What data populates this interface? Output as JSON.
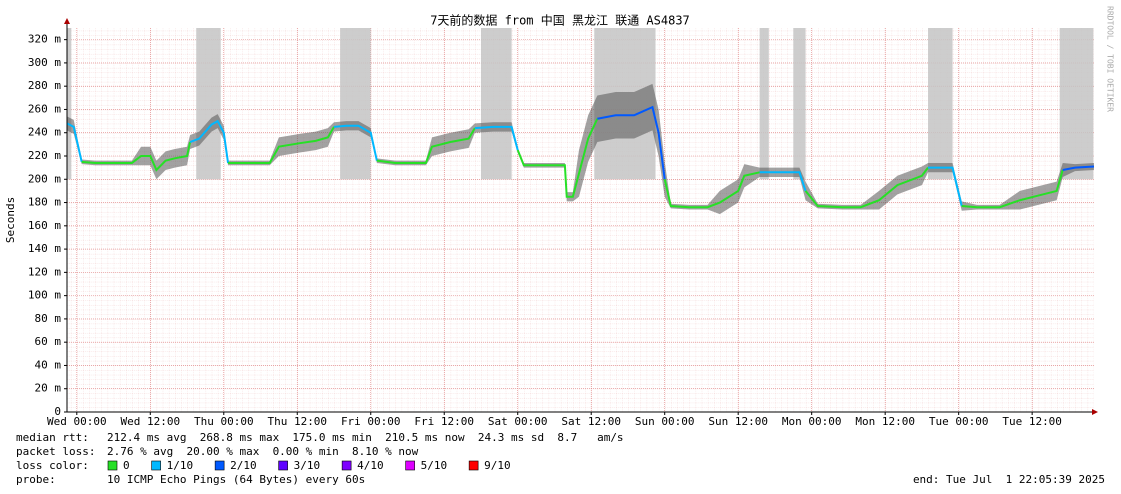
{
  "chart_data": {
    "type": "smokeping",
    "title": "7天前的数据 from 中国 黑龙江 联通 AS4837",
    "y_label": "Seconds",
    "watermark": "RRDTOOL / TOBI OETIKER",
    "xlim": [
      -1.6,
      166.1
    ],
    "xticks": [
      {
        "value": 0,
        "label": "Wed 00:00"
      },
      {
        "value": 12,
        "label": "Wed 12:00"
      },
      {
        "value": 24,
        "label": "Thu 00:00"
      },
      {
        "value": 36,
        "label": "Thu 12:00"
      },
      {
        "value": 48,
        "label": "Fri 00:00"
      },
      {
        "value": 60,
        "label": "Fri 12:00"
      },
      {
        "value": 72,
        "label": "Sat 00:00"
      },
      {
        "value": 84,
        "label": "Sat 12:00"
      },
      {
        "value": 96,
        "label": "Sun 00:00"
      },
      {
        "value": 108,
        "label": "Sun 12:00"
      },
      {
        "value": 120,
        "label": "Mon 00:00"
      },
      {
        "value": 132,
        "label": "Mon 12:00"
      },
      {
        "value": 144,
        "label": "Tue 00:00"
      },
      {
        "value": 156,
        "label": "Tue 12:00"
      }
    ],
    "ylim": [
      0,
      330
    ],
    "yticks": [
      0,
      {
        "value": 20,
        "label": "20 m"
      },
      {
        "value": 40,
        "label": "40 m"
      },
      {
        "value": 60,
        "label": "60 m"
      },
      {
        "value": 80,
        "label": "80 m"
      },
      {
        "value": 100,
        "label": "100 m"
      },
      {
        "value": 120,
        "label": "120 m"
      },
      {
        "value": 140,
        "label": "140 m"
      },
      {
        "value": 160,
        "label": "160 m"
      },
      {
        "value": 180,
        "label": "180 m"
      },
      {
        "value": 200,
        "label": "200 m"
      },
      {
        "value": 220,
        "label": "220 m"
      },
      {
        "value": 240,
        "label": "240 m"
      },
      {
        "value": 260,
        "label": "260 m"
      },
      {
        "value": 280,
        "label": "280 m"
      },
      {
        "value": 300,
        "label": "300 m"
      },
      {
        "value": 320,
        "label": "320 m"
      }
    ],
    "grid": true,
    "x": [
      -1.6,
      -0.5,
      0.8,
      3,
      6,
      9,
      10.5,
      12,
      13,
      14.5,
      16,
      18,
      18.5,
      20,
      22,
      23,
      24,
      24.7,
      28,
      31.5,
      33,
      36.4,
      39,
      41,
      42,
      44,
      46,
      48,
      49,
      52,
      57,
      58,
      61,
      64,
      65,
      68,
      71,
      72,
      73,
      76,
      79.7,
      80,
      81,
      82,
      83.5,
      85,
      88,
      91,
      94,
      95,
      96,
      97,
      100,
      103,
      105,
      108,
      109,
      111.5,
      115,
      118,
      119,
      121,
      125,
      128,
      131,
      134,
      138,
      139,
      141,
      143,
      144.5,
      147,
      150.7,
      154,
      157,
      160,
      161,
      163,
      166.1
    ],
    "values": [
      248,
      245,
      215,
      214,
      214,
      214,
      220,
      220,
      208,
      216,
      218,
      220,
      232,
      235,
      247,
      250,
      240,
      214,
      214,
      214,
      228,
      231,
      233,
      236,
      245,
      246,
      246,
      240,
      216,
      214,
      214,
      228,
      232,
      235,
      244,
      245,
      245,
      225,
      212,
      212,
      212,
      185,
      185,
      205,
      235,
      252,
      255,
      255,
      262,
      240,
      200,
      177,
      176,
      176,
      180,
      190,
      203,
      206,
      206,
      206,
      190,
      177,
      176,
      176,
      182,
      195,
      203,
      210,
      210,
      210,
      177,
      176,
      176,
      182,
      186,
      190,
      208,
      210,
      211
    ],
    "smoke_low": [
      242,
      239,
      213,
      212,
      212,
      212,
      212,
      212,
      200,
      208,
      210,
      212,
      226,
      229,
      241,
      244,
      234,
      212,
      212,
      212,
      220,
      223,
      225,
      228,
      241,
      242,
      242,
      236,
      214,
      212,
      212,
      220,
      224,
      227,
      240,
      241,
      241,
      223,
      210,
      210,
      210,
      181,
      181,
      185,
      215,
      232,
      235,
      235,
      242,
      220,
      185,
      175,
      174,
      174,
      170,
      180,
      193,
      202,
      202,
      202,
      182,
      175,
      174,
      174,
      174,
      187,
      195,
      206,
      206,
      206,
      173,
      174,
      174,
      174,
      178,
      182,
      202,
      207,
      208
    ],
    "smoke_high": [
      254,
      251,
      217,
      216,
      216,
      216,
      228,
      228,
      216,
      224,
      226,
      228,
      238,
      241,
      253,
      256,
      246,
      216,
      216,
      216,
      236,
      239,
      241,
      244,
      249,
      250,
      250,
      244,
      218,
      216,
      216,
      236,
      240,
      243,
      248,
      249,
      249,
      227,
      214,
      214,
      214,
      189,
      189,
      225,
      255,
      272,
      275,
      275,
      282,
      260,
      215,
      179,
      178,
      178,
      190,
      200,
      213,
      210,
      210,
      210,
      198,
      179,
      178,
      178,
      190,
      203,
      211,
      214,
      214,
      214,
      181,
      178,
      178,
      190,
      194,
      198,
      214,
      213,
      214
    ],
    "loss": [
      1,
      1,
      0,
      0,
      0,
      0,
      0,
      0,
      0,
      0,
      0,
      0,
      1,
      1,
      1,
      1,
      1,
      0,
      0,
      0,
      0,
      0,
      0,
      0,
      1,
      1,
      1,
      1,
      0,
      0,
      0,
      0,
      0,
      0,
      1,
      1,
      1,
      0,
      0,
      0,
      0,
      0,
      0,
      0,
      0,
      2,
      2,
      2,
      2,
      2,
      0,
      0,
      0,
      0,
      0,
      0,
      0,
      1,
      1,
      1,
      0,
      0,
      0,
      0,
      0,
      0,
      0,
      1,
      1,
      1,
      0,
      0,
      0,
      0,
      0,
      0,
      2,
      2,
      2
    ],
    "loss_spikes": [
      [
        -1.6,
        -0.9
      ],
      [
        19.5,
        23.5
      ],
      [
        43,
        48
      ],
      [
        66,
        71
      ],
      [
        84.5,
        94.5
      ],
      [
        111.5,
        113
      ],
      [
        117,
        119
      ],
      [
        139,
        143
      ],
      [
        160.5,
        166
      ]
    ],
    "stats": [
      {
        "label": "median rtt:",
        "text": "212.4 ms avg  268.8 ms max  175.0 ms min  210.5 ms now  24.3 ms sd  8.7   am/s"
      },
      {
        "label": "packet loss:",
        "text": "2.76 % avg  20.00 % max  0.00 % min  8.10 % now"
      }
    ],
    "loss_color_label": "loss color:",
    "loss_colors": [
      {
        "label": "0",
        "color": "#26e026"
      },
      {
        "label": "1/10",
        "color": "#00b8ff"
      },
      {
        "label": "2/10",
        "color": "#0059ff"
      },
      {
        "label": "3/10",
        "color": "#5e00ff"
      },
      {
        "label": "4/10",
        "color": "#7e00ff"
      },
      {
        "label": "5/10",
        "color": "#dd00ff"
      },
      {
        "label": "9/10",
        "color": "#ff0000"
      }
    ],
    "probe_label": "probe:",
    "probe": "10 ICMP Echo Pings (64 Bytes) every 60s",
    "end": "end: Tue Jul  1 22:05:39 2025"
  }
}
